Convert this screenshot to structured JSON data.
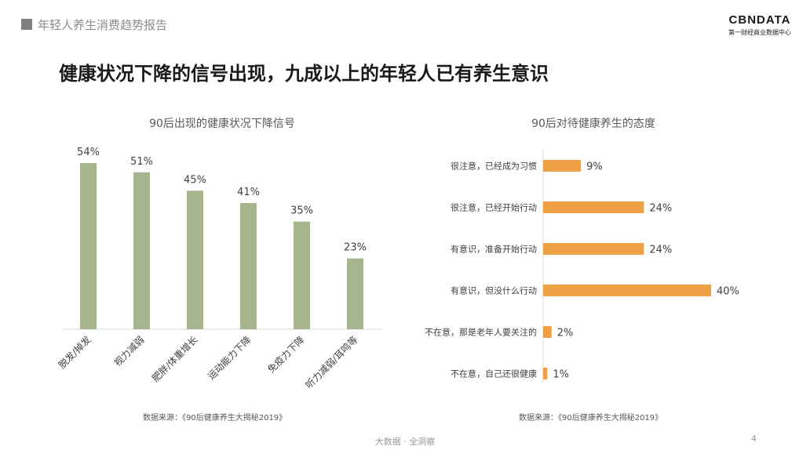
{
  "header": {
    "title": "年轻人养生消费趋势报告"
  },
  "logo": {
    "main": "CBNDATA",
    "sub": "第一财经商业数据中心"
  },
  "headline": "健康状况下降的信号出现，九成以上的年轻人已有养生意识",
  "colors": {
    "bar_left": "#a6b58e",
    "bar_right": "#f0a044",
    "axis": "#d9d9d9"
  },
  "chart_data": [
    {
      "type": "bar",
      "title": "90后出现的健康状况下降信号",
      "categories": [
        "脱发/掉发",
        "视力减弱",
        "肥胖/体重增长",
        "运动能力下降",
        "免疫力下降",
        "听力减弱/耳鸣等"
      ],
      "values": [
        54,
        51,
        45,
        41,
        35,
        23
      ],
      "value_labels": [
        "54%",
        "51%",
        "45%",
        "41%",
        "35%",
        "23%"
      ],
      "unit": "%",
      "ylim": [
        0,
        54
      ]
    },
    {
      "type": "bar",
      "orientation": "horizontal",
      "title": "90后对待健康养生的态度",
      "categories": [
        "很注意，已经成为习惯",
        "很注意，已经开始行动",
        "有意识，准备开始行动",
        "有意识，但没什么行动",
        "不在意，那是老年人要关注的",
        "不在意，自己还很健康"
      ],
      "values": [
        9,
        24,
        24,
        40,
        2,
        1
      ],
      "value_labels": [
        "9%",
        "24%",
        "24%",
        "40%",
        "2%",
        "1%"
      ],
      "unit": "%",
      "xlim": [
        0,
        40
      ]
    }
  ],
  "sources": {
    "left": "数据来源：《90后健康养生大揭秘2019》",
    "right": "数据来源：《90后健康养生大揭秘2019》"
  },
  "footer": {
    "brand": "大数据 · 全洞察",
    "page": "4"
  }
}
